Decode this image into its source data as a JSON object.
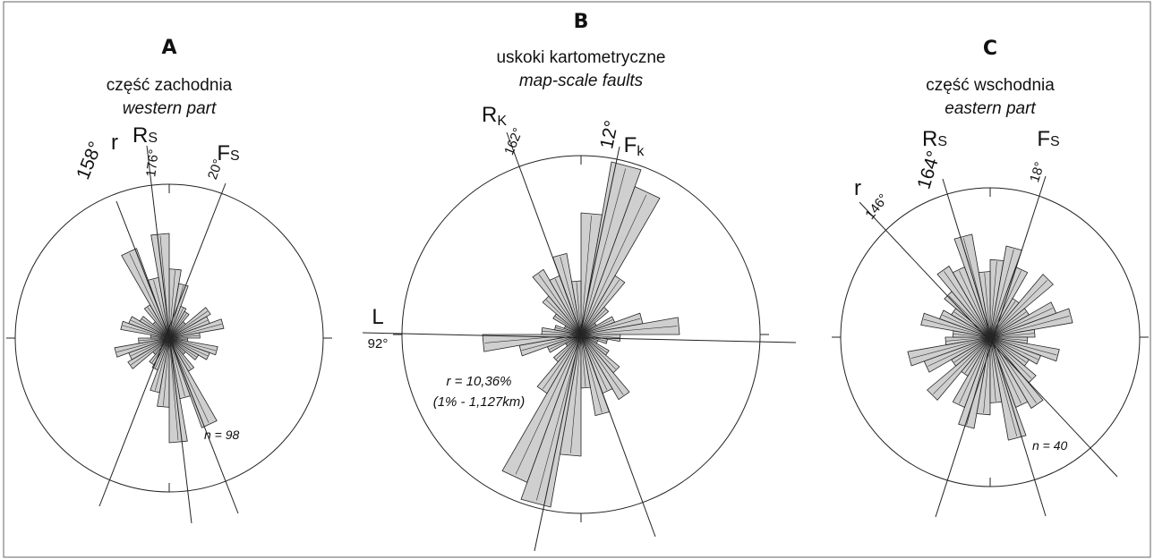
{
  "chart_data": [
    {
      "type": "rose",
      "panel": "A",
      "title_pl": "część zachodnia",
      "title_en": "western part",
      "n_label": "n = 98",
      "directions": [
        {
          "label": "r",
          "sub": "",
          "angle_label": "158°",
          "azimuth": 158
        },
        {
          "label": "R",
          "sub": "S",
          "angle_label": "176°",
          "azimuth": 176
        },
        {
          "label": "F",
          "sub": "S",
          "angle_label": "20°",
          "azimuth": 20
        }
      ],
      "petals": [
        {
          "azimuth": 5,
          "value": 0.45
        },
        {
          "azimuth": 15,
          "value": 0.36
        },
        {
          "azimuth": 25,
          "value": 0.22
        },
        {
          "azimuth": 35,
          "value": 0.2
        },
        {
          "azimuth": 45,
          "value": 0.14
        },
        {
          "azimuth": 55,
          "value": 0.31
        },
        {
          "azimuth": 65,
          "value": 0.28
        },
        {
          "azimuth": 75,
          "value": 0.36
        },
        {
          "azimuth": 85,
          "value": 0.2
        },
        {
          "azimuth": 95,
          "value": 0.12
        },
        {
          "azimuth": 105,
          "value": 0.32
        },
        {
          "azimuth": 115,
          "value": 0.28
        },
        {
          "azimuth": 125,
          "value": 0.22
        },
        {
          "azimuth": 135,
          "value": 0.14
        },
        {
          "azimuth": 145,
          "value": 0.25
        },
        {
          "azimuth": 155,
          "value": 0.62
        },
        {
          "azimuth": 165,
          "value": 0.4
        },
        {
          "azimuth": 175,
          "value": 0.68
        }
      ]
    },
    {
      "type": "rose",
      "panel": "B",
      "title_pl": "uskoki kartometryczne",
      "title_en": "map-scale faults",
      "scale_note": "r = 10,36%",
      "scale_note_2": "(1% - 1,127km)",
      "directions": [
        {
          "label": "R",
          "sub": "K",
          "angle_label": "162°",
          "azimuth": 162
        },
        {
          "label": "F",
          "sub": "k",
          "angle_label": "12°",
          "azimuth": 12
        },
        {
          "label": "L",
          "sub": "",
          "angle_label": "92°",
          "azimuth": 92
        }
      ],
      "petals": [
        {
          "azimuth": 5,
          "value": 0.68
        },
        {
          "azimuth": 15,
          "value": 0.98
        },
        {
          "azimuth": 25,
          "value": 0.88
        },
        {
          "azimuth": 35,
          "value": 0.38
        },
        {
          "azimuth": 45,
          "value": 0.2
        },
        {
          "azimuth": 55,
          "value": 0.1
        },
        {
          "azimuth": 65,
          "value": 0.2
        },
        {
          "azimuth": 75,
          "value": 0.35
        },
        {
          "azimuth": 85,
          "value": 0.55
        },
        {
          "azimuth": 95,
          "value": 0.22
        },
        {
          "azimuth": 105,
          "value": 0.15
        },
        {
          "azimuth": 115,
          "value": 0.1
        },
        {
          "azimuth": 125,
          "value": 0.18
        },
        {
          "azimuth": 135,
          "value": 0.28
        },
        {
          "azimuth": 145,
          "value": 0.42
        },
        {
          "azimuth": 155,
          "value": 0.35
        },
        {
          "azimuth": 165,
          "value": 0.46
        },
        {
          "azimuth": 175,
          "value": 0.3
        }
      ]
    },
    {
      "type": "rose",
      "panel": "C",
      "title_pl": "część wschodnia",
      "title_en": "eastern part",
      "n_label": "n = 40",
      "directions": [
        {
          "label": "r",
          "sub": "",
          "angle_label": "146°",
          "azimuth": 146
        },
        {
          "label": "R",
          "sub": "S",
          "angle_label": "164°",
          "azimuth": 164
        },
        {
          "label": "F",
          "sub": "S",
          "angle_label": "18°",
          "azimuth": 18
        }
      ],
      "petals": [
        {
          "azimuth": 5,
          "value": 0.52
        },
        {
          "azimuth": 15,
          "value": 0.62
        },
        {
          "azimuth": 25,
          "value": 0.5
        },
        {
          "azimuth": 35,
          "value": 0.3
        },
        {
          "azimuth": 45,
          "value": 0.55
        },
        {
          "azimuth": 55,
          "value": 0.3
        },
        {
          "azimuth": 65,
          "value": 0.47
        },
        {
          "azimuth": 75,
          "value": 0.56
        },
        {
          "azimuth": 85,
          "value": 0.3
        },
        {
          "azimuth": 95,
          "value": 0.25
        },
        {
          "azimuth": 105,
          "value": 0.47
        },
        {
          "azimuth": 115,
          "value": 0.36
        },
        {
          "azimuth": 125,
          "value": 0.3
        },
        {
          "azimuth": 135,
          "value": 0.4
        },
        {
          "azimuth": 145,
          "value": 0.55
        },
        {
          "azimuth": 155,
          "value": 0.5
        },
        {
          "azimuth": 165,
          "value": 0.7
        },
        {
          "azimuth": 175,
          "value": 0.44
        }
      ]
    }
  ]
}
